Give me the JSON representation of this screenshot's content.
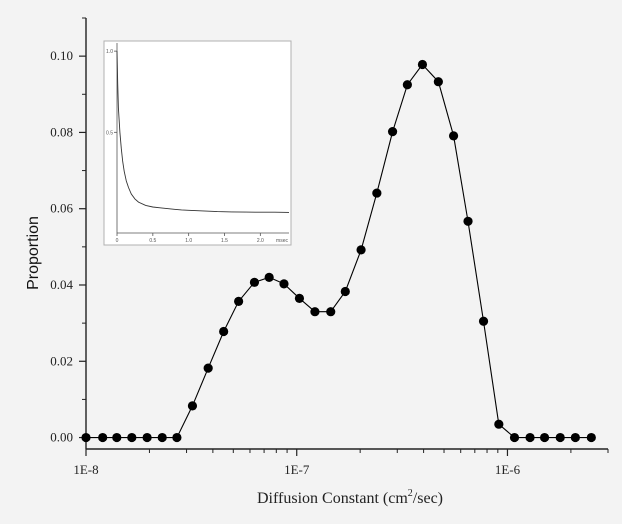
{
  "chart_data": {
    "type": "scatter",
    "xlabel_main": "Diffusion Constant (cm",
    "xlabel_sup": "2",
    "xlabel_tail": "/sec)",
    "ylabel": "Proportion",
    "x_scale": "log",
    "xlim": [
      1e-08,
      3e-06
    ],
    "ylim": [
      -0.003,
      0.11
    ],
    "x_ticks": [
      {
        "value": 1e-08,
        "label": "1E-8"
      },
      {
        "value": 1e-07,
        "label": "1E-7"
      },
      {
        "value": 1e-06,
        "label": "1E-6"
      }
    ],
    "y_ticks": [
      {
        "value": 0.0,
        "label": "0.00"
      },
      {
        "value": 0.02,
        "label": "0.02"
      },
      {
        "value": 0.04,
        "label": "0.04"
      },
      {
        "value": 0.06,
        "label": "0.06"
      },
      {
        "value": 0.08,
        "label": "0.08"
      },
      {
        "value": 0.1,
        "label": "0.10"
      }
    ],
    "series": [
      {
        "connected": true,
        "marker": "filled-circle",
        "color": "#000000",
        "x": [
          1e-08,
          1.2e-08,
          1.4e-08,
          1.65e-08,
          1.95e-08,
          2.3e-08,
          2.7e-08,
          3.2e-08,
          3.8e-08,
          4.5e-08,
          5.3e-08,
          6.3e-08,
          7.4e-08,
          8.7e-08,
          1.03e-07,
          1.22e-07,
          1.45e-07,
          1.7e-07,
          2.02e-07,
          2.4e-07,
          2.85e-07,
          3.35e-07,
          3.95e-07,
          4.7e-07,
          5.55e-07,
          6.5e-07,
          7.7e-07,
          9.1e-07,
          1.08e-06,
          1.28e-06,
          1.5e-06,
          1.78e-06,
          2.1e-06,
          2.5e-06
        ],
        "y": [
          0.0,
          0.0,
          0.0,
          0.0,
          0.0,
          0.0,
          0.0,
          0.0083,
          0.0182,
          0.0278,
          0.0357,
          0.0407,
          0.042,
          0.0403,
          0.0365,
          0.033,
          0.033,
          0.0383,
          0.0492,
          0.0641,
          0.0802,
          0.0925,
          0.0978,
          0.0933,
          0.0791,
          0.0567,
          0.0305,
          0.0035,
          0.0,
          0.0,
          0.0,
          0.0,
          0.0,
          0.0
        ]
      }
    ],
    "inset": {
      "type": "line",
      "x_ticks": [
        {
          "value": 0.0,
          "label": "0"
        },
        {
          "value": 0.5,
          "label": "0.5"
        },
        {
          "value": 1.0,
          "label": "1.0"
        },
        {
          "value": 1.5,
          "label": "1.5"
        },
        {
          "value": 2.0,
          "label": "2.0"
        }
      ],
      "x_unit": "msec",
      "y_ticks": [
        {
          "value": 0.5,
          "label": "0.5"
        },
        {
          "value": 1.0,
          "label": "1.0"
        }
      ],
      "xlim": [
        0,
        2.4
      ],
      "ylim": [
        -0.12,
        1.05
      ],
      "x": [
        0.0,
        0.01,
        0.02,
        0.04,
        0.06,
        0.08,
        0.1,
        0.13,
        0.16,
        0.2,
        0.25,
        0.3,
        0.4,
        0.5,
        0.6,
        0.7,
        0.8,
        0.9,
        1.0,
        1.2,
        1.4,
        1.6,
        1.8,
        2.0,
        2.2,
        2.4
      ],
      "y": [
        1.0,
        0.8,
        0.65,
        0.5,
        0.4,
        0.32,
        0.26,
        0.2,
        0.16,
        0.12,
        0.09,
        0.07,
        0.05,
        0.04,
        0.035,
        0.03,
        0.026,
        0.022,
        0.02,
        0.016,
        0.012,
        0.01,
        0.009,
        0.008,
        0.008,
        0.007
      ]
    }
  }
}
